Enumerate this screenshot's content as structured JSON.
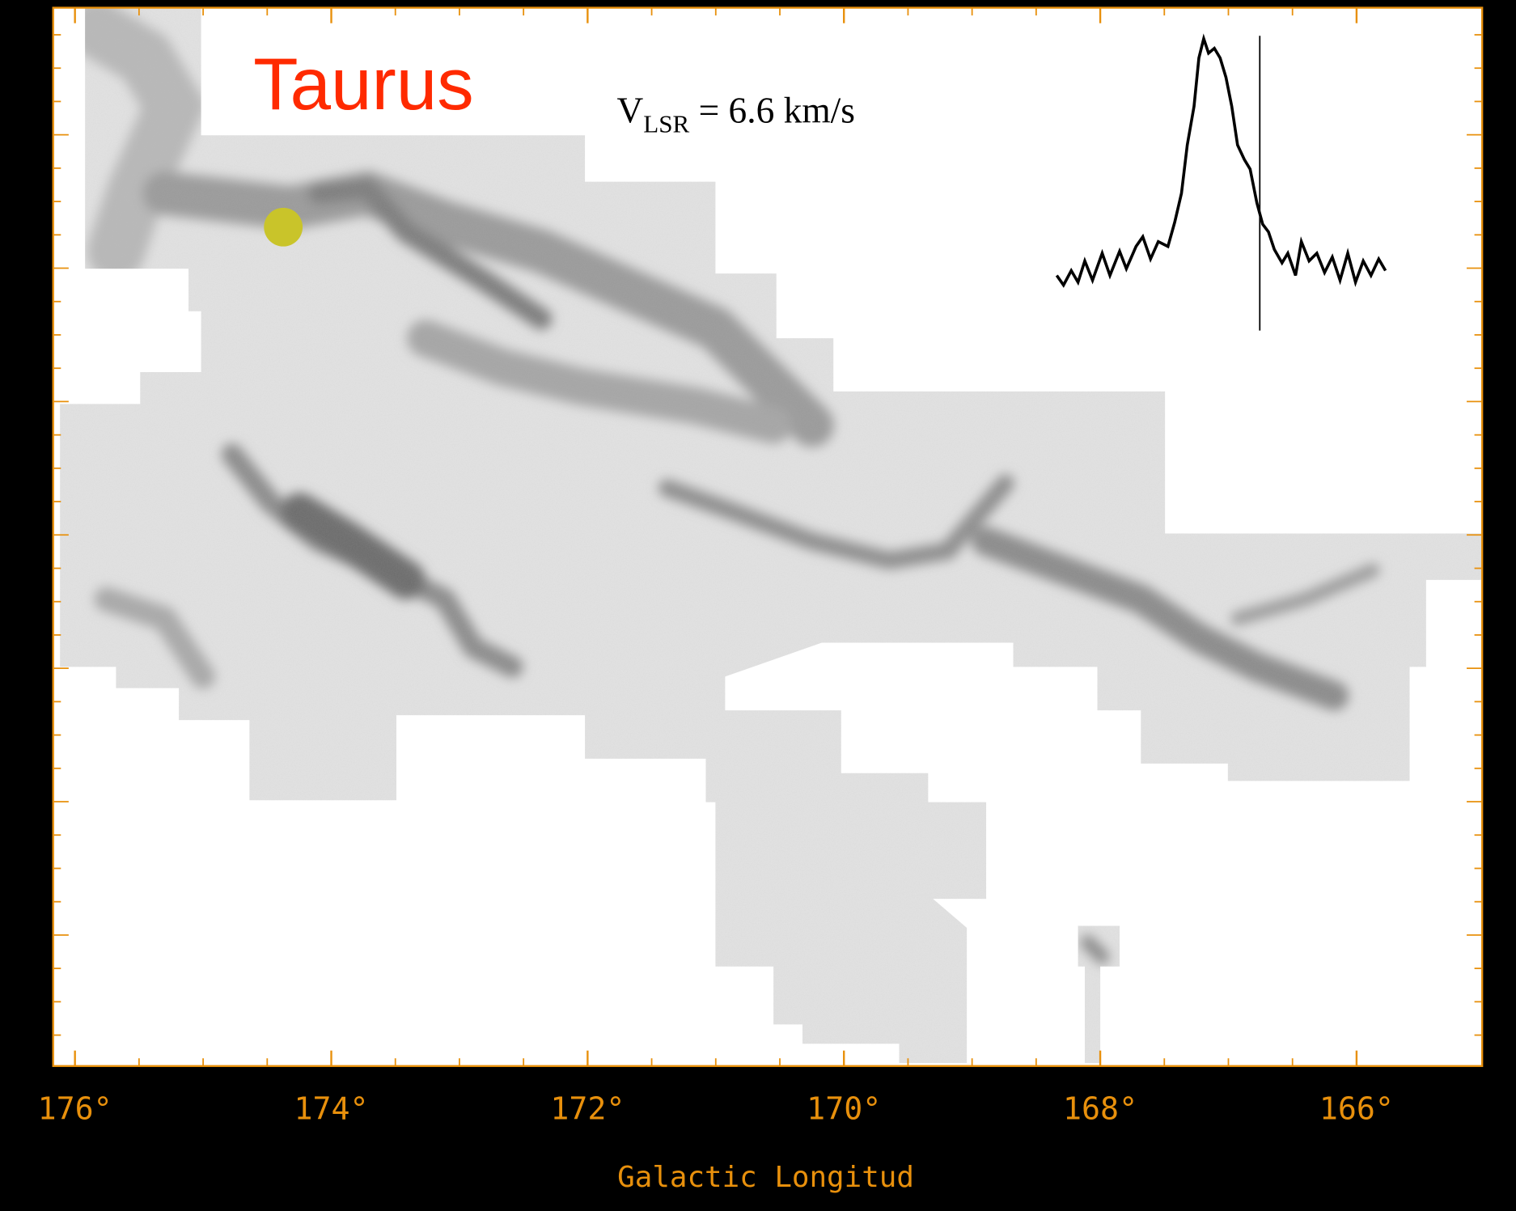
{
  "chart_data": {
    "type": "map",
    "title": "Taurus",
    "annotation": {
      "text": "V",
      "subscript": "LSR",
      "rest": " = 6.6 km/s"
    },
    "xlabel": "Galactic Longitud",
    "xlim": [
      176.17,
      165.02
    ],
    "xticks": [
      {
        "value": 176,
        "label": "176°"
      },
      {
        "value": 174,
        "label": "174°"
      },
      {
        "value": 172,
        "label": "172°"
      },
      {
        "value": 170,
        "label": "170°"
      },
      {
        "value": 168,
        "label": "168°"
      },
      {
        "value": 166,
        "label": "166°"
      }
    ],
    "axis_color": "#e8900c"
  }
}
